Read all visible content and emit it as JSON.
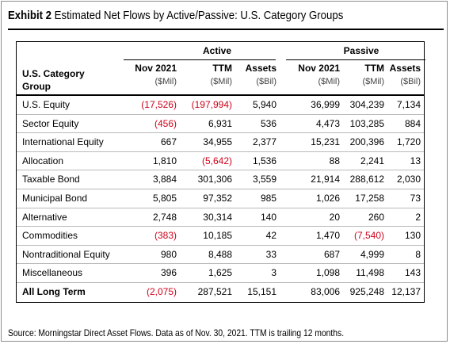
{
  "title": {
    "prefix": "Exhibit 2",
    "text": "Estimated Net Flows by Active/Passive: U.S. Category Groups"
  },
  "table": {
    "category_header": [
      "U.S. Category",
      "Group"
    ],
    "groups": [
      "Active",
      "Passive"
    ],
    "columns": [
      {
        "label": "Nov 2021",
        "unit": "($Mil)"
      },
      {
        "label": "TTM",
        "unit": "($Mil)"
      },
      {
        "label": "Assets",
        "unit": "($Bil)"
      },
      {
        "label": "Nov 2021",
        "unit": "($Mil)"
      },
      {
        "label": "TTM",
        "unit": "($Mil)"
      },
      {
        "label": "Assets",
        "unit": "($Bil)"
      }
    ],
    "rows": [
      {
        "category": "U.S. Equity",
        "values": [
          "(17,526)",
          "(197,994)",
          "5,940",
          "36,999",
          "304,239",
          "7,134"
        ]
      },
      {
        "category": "Sector Equity",
        "values": [
          "(456)",
          "6,931",
          "536",
          "4,473",
          "103,285",
          "884"
        ]
      },
      {
        "category": "International Equity",
        "values": [
          "667",
          "34,955",
          "2,377",
          "15,231",
          "200,396",
          "1,720"
        ]
      },
      {
        "category": "Allocation",
        "values": [
          "1,810",
          "(5,642)",
          "1,536",
          "88",
          "2,241",
          "13"
        ]
      },
      {
        "category": "Taxable Bond",
        "values": [
          "3,884",
          "301,306",
          "3,559",
          "21,914",
          "288,612",
          "2,030"
        ]
      },
      {
        "category": "Municipal Bond",
        "values": [
          "5,805",
          "97,352",
          "985",
          "1,026",
          "17,258",
          "73"
        ]
      },
      {
        "category": "Alternative",
        "values": [
          "2,748",
          "30,314",
          "140",
          "20",
          "260",
          "2"
        ]
      },
      {
        "category": "Commodities",
        "values": [
          "(383)",
          "10,185",
          "42",
          "1,470",
          "(7,540)",
          "130"
        ]
      },
      {
        "category": "Nontraditional Equity",
        "values": [
          "980",
          "8,488",
          "33",
          "687",
          "4,999",
          "8"
        ]
      },
      {
        "category": "Miscellaneous",
        "values": [
          "396",
          "1,625",
          "3",
          "1,098",
          "11,498",
          "143"
        ]
      },
      {
        "category": "All Long Term",
        "values": [
          "(2,075)",
          "287,521",
          "15,151",
          "83,006",
          "925,248",
          "12,137"
        ]
      }
    ]
  },
  "colors": {
    "negative": "#d0021b"
  },
  "source": "Source: Morningstar Direct Asset Flows. Data as of Nov. 30, 2021. TTM is trailing 12 months."
}
